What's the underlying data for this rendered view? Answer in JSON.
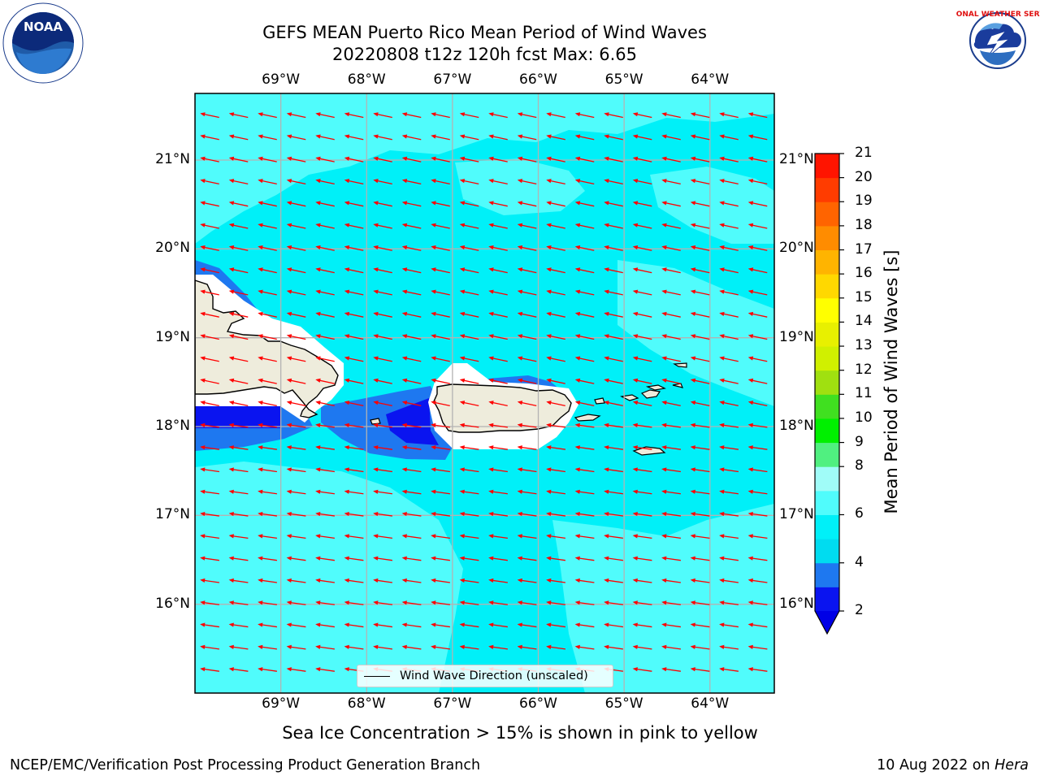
{
  "title_line1": "GEFS MEAN Puerto Rico Mean Period of Wind Waves",
  "title_line2": "20220808 t12z 120h fcst   Max: 6.65",
  "lon_ticks": [
    "69°W",
    "68°W",
    "67°W",
    "66°W",
    "65°W",
    "64°W"
  ],
  "lat_ticks": [
    "21°N",
    "20°N",
    "19°N",
    "18°N",
    "17°N",
    "16°N"
  ],
  "map_extent": {
    "lon_min": -70.0,
    "lon_max": -63.25,
    "lat_min": 15.0,
    "lat_max": 21.75
  },
  "legend_label": "Wind Wave Direction (unscaled)",
  "wind_direction": "from east-northeast toward west-southwest",
  "colorbar": {
    "title": "Mean Period of Wind Waves [s]",
    "levels": [
      2,
      3,
      4,
      5,
      6,
      7,
      8,
      9,
      10,
      11,
      12,
      13,
      14,
      15,
      16,
      17,
      18,
      19,
      20,
      21
    ],
    "labels": [
      "2",
      "4",
      "6",
      "8",
      "9",
      "10",
      "11",
      "12",
      "13",
      "14",
      "15",
      "16",
      "17",
      "18",
      "19",
      "20",
      "21"
    ],
    "colors": [
      "#0a14f0",
      "#1e78f0",
      "#00dcf0",
      "#00f0f8",
      "#50fcfc",
      "#a0fcf8",
      "#50f080",
      "#00f000",
      "#40e020",
      "#a0e010",
      "#d0f000",
      "#e8f000",
      "#ffff00",
      "#ffd800",
      "#ffb400",
      "#ff8c00",
      "#ff6400",
      "#ff3c00",
      "#ff1400"
    ],
    "under_color": "#0000e6"
  },
  "field_colors": {
    "low": "#0a14f0",
    "mid_low": "#1e78f0",
    "main": "#00f0f8",
    "light": "#50fcfc",
    "land": "#eeecdc",
    "arrow": "#ff0000"
  },
  "caption": "Sea Ice Concentration > 15% is shown in pink to yellow",
  "footer_left": "NCEP/EMC/Verification Post Processing Product Generation Branch",
  "footer_date": "10 Aug 2022 on ",
  "footer_machine": "Hera",
  "logos": {
    "left": "noaa-logo",
    "left_text": "NOAA",
    "right": "nws-logo",
    "right_text": "NATIONAL WEATHER SERVICE"
  }
}
